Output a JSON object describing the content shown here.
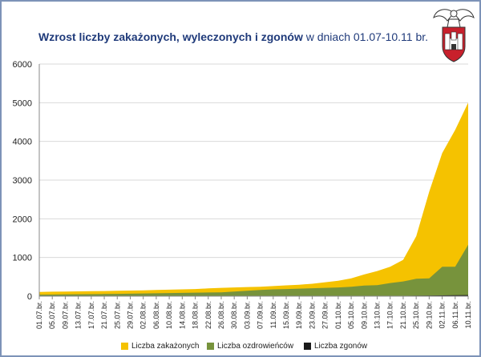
{
  "header": {
    "title_bold": "Wzrost liczby zakażonych, wyleczonych i zgonów",
    "title_rest": " w dniach 01.07-10.11 br."
  },
  "colors": {
    "infected": "#f5c200",
    "recovered": "#77933c",
    "deaths": "#1a1a1a",
    "title": "#1f3a7a",
    "frame": "#7d93b8"
  },
  "chart_data": {
    "type": "area",
    "title": "Wzrost liczby zakażonych, wyleczonych i zgonów w dniach 01.07-10.11 br.",
    "ylim": [
      0,
      6000
    ],
    "yticks": [
      0,
      1000,
      2000,
      3000,
      4000,
      5000,
      6000
    ],
    "x_labels": [
      "01.07.br.",
      "05.07.br.",
      "09.07.br.",
      "13.07.br.",
      "17.07.br.",
      "21.07.br.",
      "25.07.br.",
      "29.07.br.",
      "02.08.br.",
      "06.08.br.",
      "10.08.br.",
      "14.08.br.",
      "18.08.br.",
      "22.08.br.",
      "26.08.br.",
      "30.08.br.",
      "03.09.br.",
      "07.09.br.",
      "11.09.br.",
      "15.09.br.",
      "19.09.br.",
      "23.09.br.",
      "27.09.br.",
      "01.10.br.",
      "05.10.br.",
      "09.10.br.",
      "13.10.br.",
      "17.10.br.",
      "21.10.br.",
      "25.10.br.",
      "29.10.br.",
      "02.11.br.",
      "06.11.br.",
      "10.11.br."
    ],
    "series": [
      {
        "name": "Liczba zakażonych",
        "values": [
          110,
          115,
          120,
          125,
          128,
          132,
          138,
          145,
          152,
          160,
          168,
          175,
          185,
          200,
          215,
          225,
          235,
          245,
          260,
          280,
          295,
          320,
          360,
          400,
          460,
          560,
          650,
          760,
          940,
          1550,
          2700,
          3700,
          4300,
          5000
        ]
      },
      {
        "name": "Liczba ozdrowieńców",
        "values": [
          40,
          42,
          45,
          50,
          52,
          55,
          60,
          65,
          70,
          75,
          80,
          85,
          90,
          95,
          100,
          120,
          140,
          160,
          175,
          185,
          195,
          205,
          215,
          225,
          245,
          275,
          285,
          340,
          380,
          450,
          460,
          760,
          760,
          1330
        ]
      },
      {
        "name": "Liczba zgonów",
        "values": [
          2,
          2,
          2,
          2,
          2,
          2,
          2,
          2,
          3,
          3,
          3,
          3,
          3,
          3,
          3,
          3,
          4,
          4,
          4,
          4,
          4,
          5,
          5,
          5,
          6,
          6,
          7,
          8,
          10,
          12,
          15,
          20,
          25,
          30
        ]
      }
    ],
    "legend": [
      "Liczba zakażonych",
      "Liczba ozdrowieńców",
      "Liczba zgonów"
    ]
  }
}
